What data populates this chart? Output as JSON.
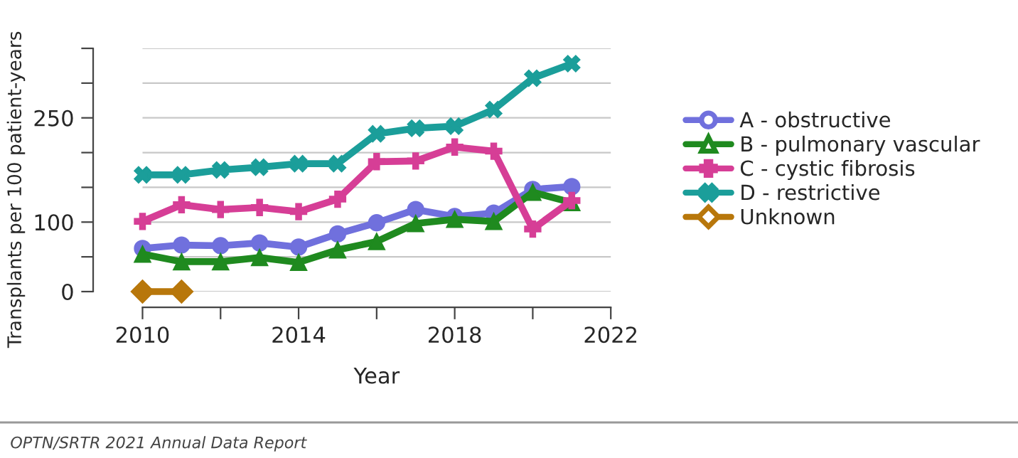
{
  "chart_data": {
    "type": "line",
    "xlabel": "Year",
    "ylabel": "Transplants per 100 patient-years",
    "x": [
      2010,
      2011,
      2012,
      2013,
      2014,
      2015,
      2016,
      2017,
      2018,
      2019,
      2020,
      2021
    ],
    "series": [
      {
        "name": "A - obstructive",
        "color": "#7070dd",
        "marker": "circle",
        "values": [
          62,
          67,
          66,
          70,
          64,
          83,
          99,
          118,
          108,
          113,
          147,
          151
        ]
      },
      {
        "name": "B - pulmonary vascular",
        "color": "#1f8a1f",
        "marker": "triangle",
        "values": [
          54,
          43,
          43,
          49,
          42,
          60,
          72,
          98,
          104,
          101,
          143,
          128
        ]
      },
      {
        "name": "C - cystic fibrosis",
        "color": "#d63e96",
        "marker": "cross",
        "values": [
          101,
          125,
          118,
          121,
          115,
          133,
          187,
          188,
          208,
          202,
          90,
          131
        ]
      },
      {
        "name": "D - restrictive",
        "color": "#1b9e9a",
        "marker": "x",
        "values": [
          168,
          168,
          175,
          179,
          184,
          184,
          227,
          235,
          238,
          262,
          307,
          328
        ]
      },
      {
        "name": "Unknown",
        "color": "#b8770b",
        "marker": "diamond",
        "x": [
          2010,
          2011
        ],
        "values": [
          0,
          0
        ]
      }
    ],
    "xlim": [
      2010,
      2022
    ],
    "xticks": [
      2010,
      {
        "value": 2012,
        "label": null
      },
      2014,
      {
        "value": 2016,
        "label": null
      },
      2018,
      {
        "value": 2020,
        "label": null
      },
      2022
    ],
    "ylim": [
      0,
      350
    ],
    "yticks": [
      0,
      {
        "value": 50,
        "label": null
      },
      100,
      {
        "value": 150,
        "label": null
      },
      {
        "value": 200,
        "label": null
      },
      250,
      {
        "value": 300,
        "label": null
      },
      {
        "value": 350,
        "label": null
      }
    ],
    "grid": "y",
    "legend": "right",
    "annotations": [
      "OPTN/SRTR 2021 Annual Data Report"
    ]
  }
}
